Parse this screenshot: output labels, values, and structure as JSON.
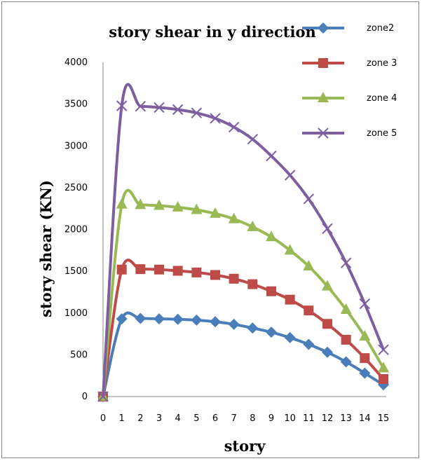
{
  "chart_data": {
    "type": "line",
    "title": "story shear in y direction",
    "xlabel": "story",
    "ylabel": "story  shear (KN)",
    "x": [
      0,
      1,
      2,
      3,
      4,
      5,
      6,
      7,
      8,
      9,
      10,
      11,
      12,
      13,
      14,
      15
    ],
    "xlim": [
      0,
      15
    ],
    "ylim": [
      0,
      4000
    ],
    "yticks": [
      0,
      500,
      1000,
      1500,
      2000,
      2500,
      3000,
      3500,
      4000
    ],
    "grid": false,
    "smooth": true,
    "legend_position": "top-right",
    "series": [
      {
        "name": "zone2",
        "color": "#4a7ebb",
        "marker": "diamond",
        "values": [
          0,
          930,
          935,
          930,
          925,
          915,
          895,
          865,
          820,
          770,
          705,
          625,
          530,
          415,
          280,
          140
        ]
      },
      {
        "name": "zone 3",
        "color": "#be4b48",
        "marker": "square",
        "values": [
          0,
          1520,
          1525,
          1520,
          1505,
          1485,
          1455,
          1410,
          1345,
          1260,
          1160,
          1030,
          870,
          680,
          460,
          210
        ]
      },
      {
        "name": "zone 4",
        "color": "#98b954",
        "marker": "triangle",
        "values": [
          0,
          2300,
          2295,
          2285,
          2265,
          2235,
          2190,
          2125,
          2030,
          1910,
          1750,
          1560,
          1320,
          1040,
          720,
          340
        ]
      },
      {
        "name": "zone 5",
        "color": "#7d5fa0",
        "marker": "x",
        "values": [
          0,
          3480,
          3475,
          3460,
          3435,
          3395,
          3330,
          3225,
          3080,
          2880,
          2650,
          2365,
          2010,
          1600,
          1110,
          560
        ]
      }
    ]
  }
}
